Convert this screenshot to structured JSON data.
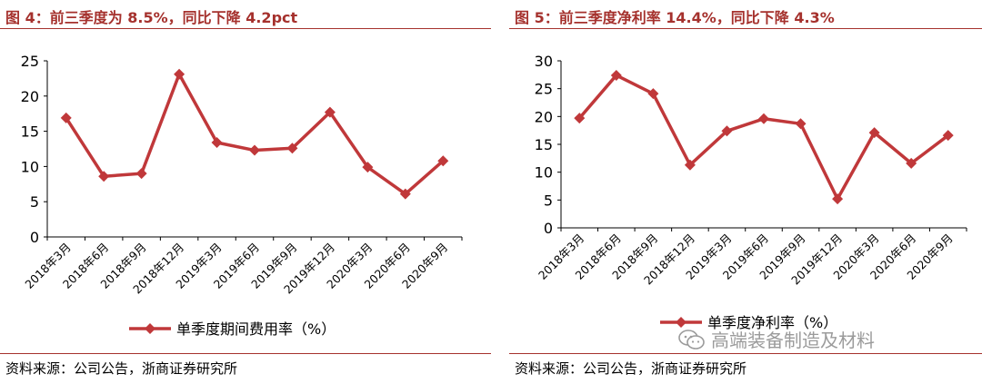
{
  "left": {
    "title": "图 4：前三季度为 8.5%，同比下降 4.2pct",
    "source": "资料来源：公司公告，浙商证券研究所"
  },
  "right": {
    "title": "图 5：前三季度净利率 14.4%，同比下降 4.3%",
    "source": "资料来源：公司公告，浙商证券研究所"
  },
  "watermark": "高端装备制造及材料",
  "colors": {
    "accent": "#a5312d",
    "series": "#c0383a"
  },
  "chart_data": [
    {
      "type": "line",
      "title": "图 4：前三季度为 8.5%，同比下降 4.2pct",
      "categories": [
        "2018年3月",
        "2018年6月",
        "2018年9月",
        "2018年12月",
        "2019年3月",
        "2019年6月",
        "2019年9月",
        "2019年12月",
        "2020年3月",
        "2020年6月",
        "2020年9月"
      ],
      "series": [
        {
          "name": "单季度期间费用率（%）",
          "values": [
            16.9,
            8.6,
            9.0,
            23.1,
            13.4,
            12.3,
            12.6,
            17.7,
            9.9,
            6.1,
            10.8
          ]
        }
      ],
      "ylim": [
        0,
        25
      ],
      "yticks": [
        0,
        5,
        10,
        15,
        20,
        25
      ],
      "grid": false,
      "legend": "bottom",
      "marker": "diamond"
    },
    {
      "type": "line",
      "title": "图 5：前三季度净利率 14.4%，同比下降 4.3%",
      "categories": [
        "2018年3月",
        "2018年6月",
        "2018年9月",
        "2018年12月",
        "2019年3月",
        "2019年6月",
        "2019年9月",
        "2019年12月",
        "2020年3月",
        "2020年6月",
        "2020年9月"
      ],
      "series": [
        {
          "name": "单季度净利率（%）",
          "values": [
            19.7,
            27.4,
            24.1,
            11.3,
            17.4,
            19.6,
            18.7,
            5.2,
            17.1,
            11.6,
            16.6
          ]
        }
      ],
      "ylim": [
        0,
        30
      ],
      "yticks": [
        0,
        5,
        10,
        15,
        20,
        25,
        30
      ],
      "grid": false,
      "legend": "bottom",
      "marker": "diamond"
    }
  ]
}
